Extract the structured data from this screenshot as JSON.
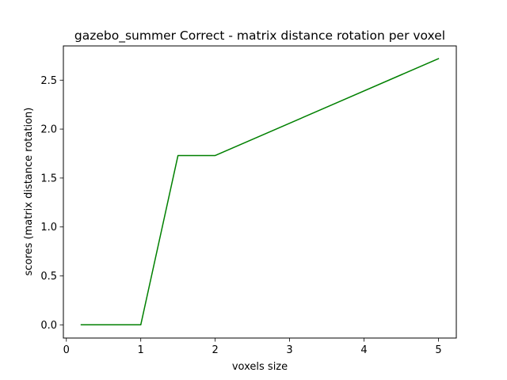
{
  "chart_data": {
    "type": "line",
    "title": "gazebo_summer Correct - matrix distance rotation per voxel",
    "xlabel": "voxels size",
    "ylabel": "scores (matrix distance rotation)",
    "xlim": [
      -0.04,
      5.24
    ],
    "ylim": [
      -0.135,
      2.85
    ],
    "x_ticks": [
      0,
      1,
      2,
      3,
      4,
      5
    ],
    "y_ticks": [
      0.0,
      0.5,
      1.0,
      1.5,
      2.0,
      2.5
    ],
    "x_tick_labels": [
      "0",
      "1",
      "2",
      "3",
      "4",
      "5"
    ],
    "y_tick_labels": [
      "0.0",
      "0.5",
      "1.0",
      "1.5",
      "2.0",
      "2.5"
    ],
    "grid": false,
    "series": [
      {
        "color": "#008000",
        "x": [
          0.2,
          1.0,
          1.5,
          2.0,
          5.0
        ],
        "y": [
          0.0,
          0.0,
          1.73,
          1.73,
          2.72
        ]
      }
    ]
  }
}
